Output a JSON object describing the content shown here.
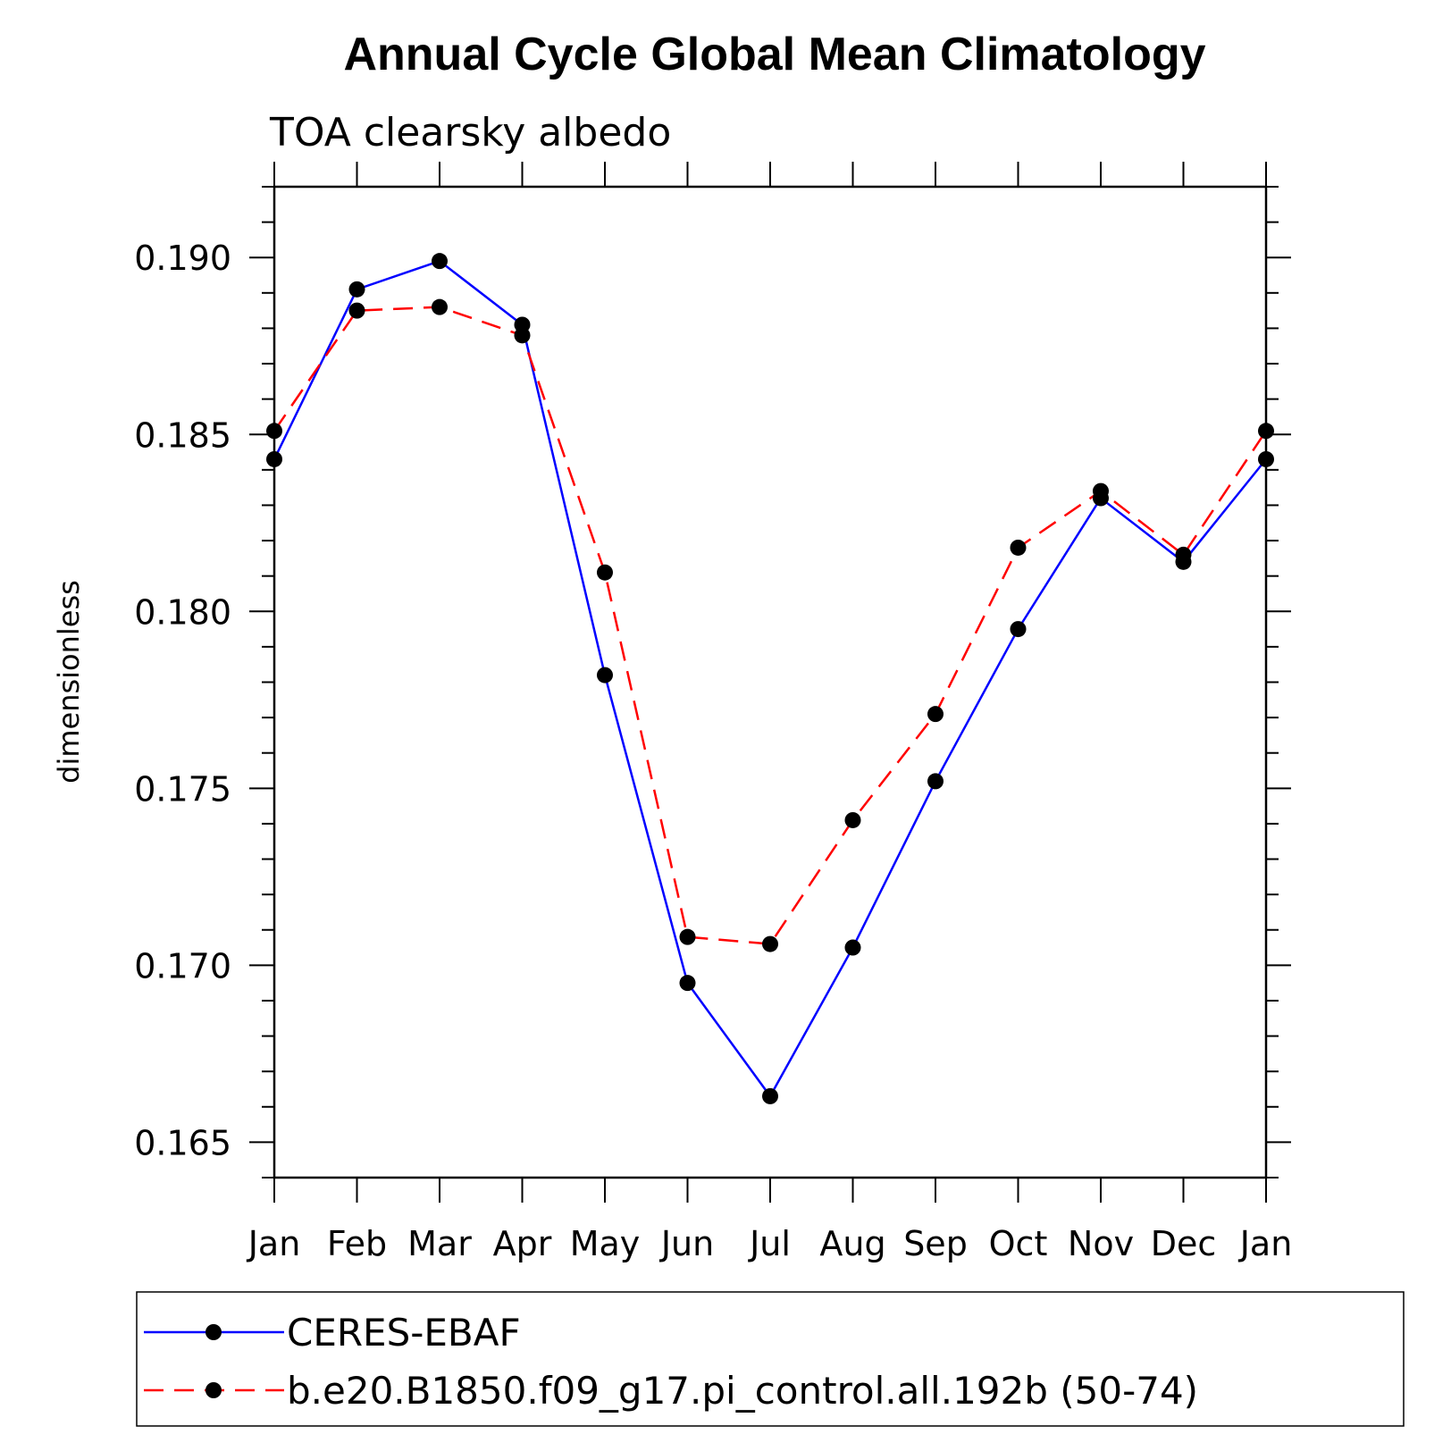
{
  "chart_data": {
    "type": "line",
    "title": "Annual Cycle Global Mean Climatology",
    "subtitle": "TOA clearsky albedo",
    "xlabel": "",
    "ylabel": "dimensionless",
    "categories": [
      "Jan",
      "Feb",
      "Mar",
      "Apr",
      "May",
      "Jun",
      "Jul",
      "Aug",
      "Sep",
      "Oct",
      "Nov",
      "Dec",
      "Jan"
    ],
    "ylim": [
      0.164,
      0.192
    ],
    "yticks": [
      0.165,
      0.17,
      0.175,
      0.18,
      0.185,
      0.19
    ],
    "ytick_labels": [
      "0.165",
      "0.170",
      "0.175",
      "0.180",
      "0.185",
      "0.190"
    ],
    "grid": false,
    "legend_position": "bottom",
    "series": [
      {
        "name": "CERES-EBAF",
        "color": "#0000ff",
        "line_style": "solid",
        "marker": "filled-circle",
        "values": [
          0.1843,
          0.1891,
          0.1899,
          0.1881,
          0.1782,
          0.1695,
          0.1663,
          0.1705,
          0.1752,
          0.1795,
          0.1832,
          0.1814,
          0.1843
        ]
      },
      {
        "name": "b.e20.B1850.f09_g17.pi_control.all.192b (50-74)",
        "color": "#ff0000",
        "line_style": "dashed",
        "marker": "filled-circle",
        "values": [
          0.1851,
          0.1885,
          0.1886,
          0.1878,
          0.1811,
          0.1708,
          0.1706,
          0.1741,
          0.1771,
          0.1818,
          0.1834,
          0.1816,
          0.1851
        ]
      }
    ]
  }
}
